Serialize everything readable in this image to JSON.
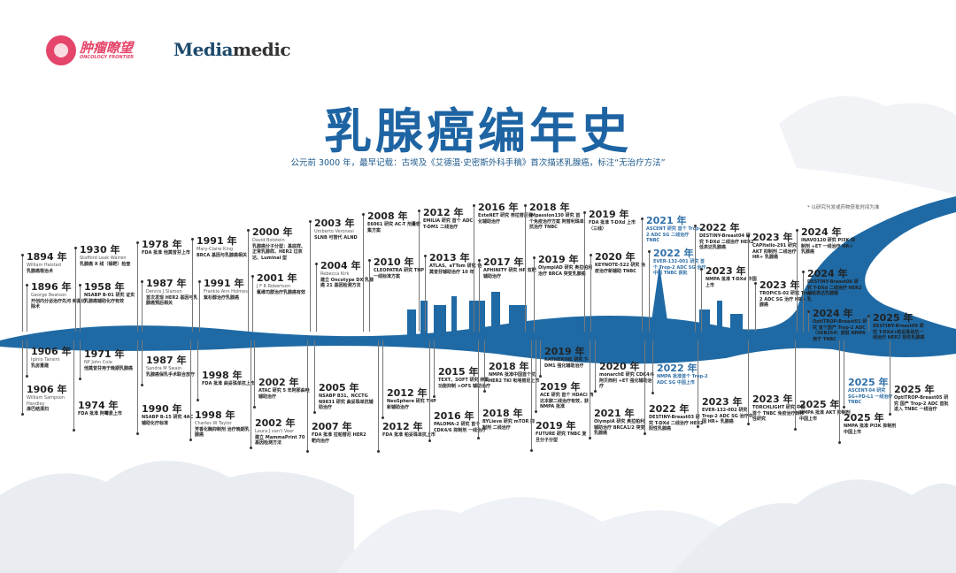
{
  "logos": {
    "oncology_frontier_cn": "肿瘤瞭望",
    "oncology_frontier_en": "ONCOLOGY FRONTIER",
    "mediamedic_a": "Media",
    "mediamedic_b": "medic"
  },
  "title": "乳腺癌编年史",
  "subtitle": "公元前 3000 年，最早记载：古埃及《艾德温·史密斯外科手稿》首次描述乳腺癌，标注“无治疗方法”",
  "note": "* 以研究刊发或药物获批时间为准",
  "colors": {
    "accent": "#1e64a3",
    "river": "#1f6aa5",
    "highlight": "#2f6fa8",
    "logo": "#e5456a"
  },
  "events": [
    {
      "year": "1894 年",
      "person": "William Halsted",
      "desc": "乳腺癌根治术"
    },
    {
      "year": "1896 年",
      "person": "George Beatson",
      "desc": "开创内分泌治疗先河 卵巢切除术"
    },
    {
      "year": "1930 年",
      "person": "Stafford Leak Warren",
      "desc": "乳腺癌 X 线（钼靶）检查"
    },
    {
      "year": "1958 年",
      "person": "",
      "desc": "NSABP B-01 研究 证实乳腺癌辅助化疗有效"
    },
    {
      "year": "1978 年",
      "person": "",
      "desc": "FDA 批准 他莫昔芬上市"
    },
    {
      "year": "1987 年",
      "person": "Dennis J Slamon",
      "desc": "首次发现 HER2 基因与乳腺癌预后相关"
    },
    {
      "year": "1991 年",
      "person": "Mary-Claire King",
      "desc": "BRCA 基因与乳腺癌相关"
    },
    {
      "year": "1991 年",
      "person": "Frankie Ann Holmes",
      "desc": "紫杉醇治疗乳腺癌"
    },
    {
      "year": "2000 年",
      "person": "David Botstein",
      "desc": "乳腺癌分子分型：基底样、正常乳腺样、HER2 过表达、Luminal 型"
    },
    {
      "year": "2001 年",
      "person": "J F R Robertson",
      "desc": "氟维司群治疗乳腺癌有效"
    },
    {
      "year": "2003 年",
      "person": "Umberto Veronesi",
      "desc": "SLNB 可替代 ALND"
    },
    {
      "year": "2004 年",
      "person": "Rebecca Kirk",
      "desc": "建立 Oncotype DX 乳腺癌 21 基因检测方法"
    },
    {
      "year": "2008 年",
      "person": "",
      "desc": "E6061 研究 AC-T 剂量密集方案"
    },
    {
      "year": "2010 年",
      "person": "",
      "desc": "CLEOPATRA 研究 THP 一线标准方案"
    },
    {
      "year": "2012 年",
      "person": "",
      "desc": "EMILIA 研究 首个 ADC T-DM1 二线治疗"
    },
    {
      "year": "2013 年",
      "person": "",
      "desc": "ATLAS、aTTom 研究 他莫昔芬辅助治疗 10 年"
    },
    {
      "year": "2016 年",
      "person": "",
      "desc": "ExteNET 研究 奈拉替尼强化辅助治疗"
    },
    {
      "year": "2017 年",
      "person": "",
      "desc": "APHINITY 研究 HP 双靶辅助治疗"
    },
    {
      "year": "2018 年",
      "person": "",
      "desc": "IMpassion130 研究 首个免疫治疗方案 阿替利珠单抗治疗 TNBC"
    },
    {
      "year": "2019 年",
      "person": "",
      "desc": "OlympiAD 研究 奥拉帕利治疗 BRCA 突变乳腺癌"
    },
    {
      "year": "2019 年",
      "person": "",
      "desc": "FDA 批准 T-DXd 上市（三线）"
    },
    {
      "year": "2020 年",
      "person": "",
      "desc": "KEYNOTE-522 研究 免疫治疗新辅助 TNBC"
    },
    {
      "year": "2021 年",
      "person": "",
      "desc": "ASCENT 研究 首个 Trop-2 ADC SG 二线治疗 TNBC",
      "highlight": true
    },
    {
      "year": "2022 年",
      "person": "",
      "desc": "EVER-132-001 研究 首个 Trop-2 ADC SG 治疗中国 TNBC 获批",
      "highlight": true
    },
    {
      "year": "2022 年",
      "person": "",
      "desc": "DESTINY-Breast04 研究 T-DXd 二线治疗 HER2 低表达乳腺癌"
    },
    {
      "year": "2023 年",
      "person": "",
      "desc": "NMPA 批准 T-DXd 中国上市"
    },
    {
      "year": "2023 年",
      "person": "",
      "desc": "CAPItello-291 研究 AKT 抑制剂 二线治疗 HR+ 乳腺癌"
    },
    {
      "year": "2023 年",
      "person": "",
      "desc": "TROPiCS-02 研究 Trop-2 ADC SG 治疗 HR+ 乳腺癌"
    },
    {
      "year": "2024 年",
      "person": "",
      "desc": "INAVO120 研究 PI3K 抑制剂 +ET 一线治疗 HR+ 乳腺癌"
    },
    {
      "year": "2024 年",
      "person": "",
      "desc": "DESTINY-Breast06 研究 T-DXd 二线治疗 HER2 超低表达乳腺癌"
    },
    {
      "year": "2024 年",
      "person": "",
      "desc": "OptiTROP-Breast01 研究 首个国产 Trop-2 ADC（SKB264）获批 NMPA 用于 TNBC"
    },
    {
      "year": "2025 年",
      "person": "",
      "desc": "DESTINY-Breast09 研究 T-DXd+帕妥珠单抗一线治疗 HER2 阳性乳腺癌"
    },
    {
      "year": "1906 年",
      "person": "Iginio Tansini",
      "desc": "乳房重建"
    },
    {
      "year": "1906 年",
      "person": "William Sampson Handley",
      "desc": "淋巴结清扫"
    },
    {
      "year": "1971 年",
      "person": "NP John Cole",
      "desc": "他莫昔芬用于晚期乳腺癌"
    },
    {
      "year": "1974 年",
      "person": "",
      "desc": "FDA 批准 阿霉素上市"
    },
    {
      "year": "1987 年",
      "person": "Sandra M Swain",
      "desc": "乳腺癌保乳手术联合放疗"
    },
    {
      "year": "1990 年",
      "person": "",
      "desc": "NSABP B-15 研究 4AC 辅助化疗标准"
    },
    {
      "year": "1998 年",
      "person": "",
      "desc": "FDA 批准 曲妥珠单抗上市"
    },
    {
      "year": "1998 年",
      "person": "Charles W Taylor",
      "desc": "芳香化酶抑制剂 治疗晚期乳腺癌"
    },
    {
      "year": "2002 年",
      "person": "",
      "desc": "ATAC 研究 5 年阿那曲唑辅助治疗"
    },
    {
      "year": "2002 年",
      "person": "Laura J van't Veer",
      "desc": "建立 MammaPrint 70 基因检测方法"
    },
    {
      "year": "2005 年",
      "person": "",
      "desc": "NSABP B31、NCCTG N9831 研究 曲妥珠单抗辅助治疗"
    },
    {
      "year": "2007 年",
      "person": "",
      "desc": "FDA 批准 拉帕替尼 HER2 靶向治疗"
    },
    {
      "year": "2012 年",
      "person": "",
      "desc": "NeoSphere 研究 THP 新辅助治疗"
    },
    {
      "year": "2012 年",
      "person": "",
      "desc": "FDA 批准 帕妥珠单抗上市"
    },
    {
      "year": "2015 年",
      "person": "",
      "desc": "TEXT、SOFT 研究 卵巢功能抑制 +OFS 辅助治疗"
    },
    {
      "year": "2016 年",
      "person": "",
      "desc": "PALOMA-2 研究 首个 CDK4/6 抑制剂 一线治疗"
    },
    {
      "year": "2018 年",
      "person": "",
      "desc": "NMPA 批准中国首个抗 HER2 TKI 吡咯替尼上市"
    },
    {
      "year": "2018 年",
      "person": "",
      "desc": "BYLieve 研究 mTOR 抑制剂 二线治疗"
    },
    {
      "year": "2019 年",
      "person": "",
      "desc": "KATHERINE 研究 T-DM1 强化辅助治疗"
    },
    {
      "year": "2019 年",
      "person": "",
      "desc": "ACE 研究 首个 HDACi 西达本胺二线治疗有效，获 NMPA 批准"
    },
    {
      "year": "2019 年",
      "person": "",
      "desc": "FUTURE 研究 TNBC 复旦分子分型"
    },
    {
      "year": "2020 年",
      "person": "",
      "desc": "monarchE 研究 CDK4/6 阿贝西利 +ET 强化辅助治疗"
    },
    {
      "year": "2021 年",
      "person": "",
      "desc": "OlympiA 研究 奥拉帕利辅助治疗 BRCA1/2 突变乳腺癌"
    },
    {
      "year": "2022 年",
      "person": "",
      "desc": "NMPA 批准首个 Trop-2 ADC SG 中国上市",
      "highlight": true
    },
    {
      "year": "2022 年",
      "person": "",
      "desc": "DESTINY-Breast03 研究 T-DXd 二线治疗 HER2 阳性乳腺癌"
    },
    {
      "year": "2023 年",
      "person": "",
      "desc": "EVER-132-002 研究 Trop-2 ADC SG 治疗中国 HR+ 乳腺癌"
    },
    {
      "year": "2023 年",
      "person": "",
      "desc": "TORCHLIGHT 研究 中国首个 TNBC 免疫治疗转移性研究"
    },
    {
      "year": "2025 年",
      "person": "",
      "desc": "NMPA 批准 AKT 抑制剂 中国上市"
    },
    {
      "year": "2025 年",
      "person": "",
      "desc": "ASCENT-04 研究 SG+PD-L1 一线治疗 TNBC",
      "highlight": true
    },
    {
      "year": "2025 年",
      "person": "",
      "desc": "NMPA 批准 PI3K 抑制剂 中国上市"
    },
    {
      "year": "2025 年",
      "person": "",
      "desc": "OptiTROP-Breast05 研究 国产 Trop-2 ADC 首批进入 TNBC 一线治疗"
    }
  ]
}
